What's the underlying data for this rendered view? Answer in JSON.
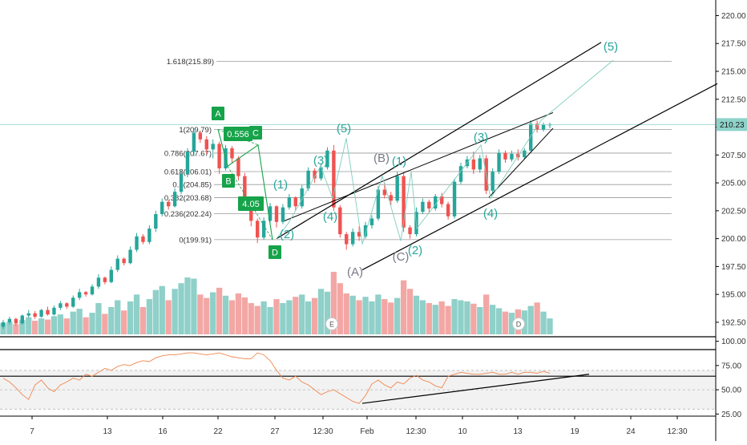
{
  "chart_data": [
    {
      "type": "candlestick",
      "price_axis": {
        "ticks": [
          "220.00",
          "217.50",
          "215.00",
          "212.50",
          "210.00",
          "207.50",
          "205.00",
          "202.50",
          "200.00",
          "197.50",
          "195.00",
          "192.50"
        ],
        "ylim": [
          191.2,
          221.4
        ],
        "last_price_label": "210.23",
        "last_price": 210.23
      },
      "time_axis": {
        "ticks": [
          "7",
          "13",
          "16",
          "22",
          "27",
          "12:30",
          "Feb",
          "12:30",
          "10",
          "13",
          "19",
          "24",
          "12:30"
        ]
      },
      "fib_levels": [
        {
          "label": "1.618(215.89)",
          "value": 215.89
        },
        {
          "label": "1(209.79)",
          "value": 209.79
        },
        {
          "label": "0.786(207.67)",
          "value": 207.67
        },
        {
          "label": "0.618(206.01)",
          "value": 206.01
        },
        {
          "label": "0.5(204.85)",
          "value": 204.85
        },
        {
          "label": "0.382(203.68)",
          "value": 203.68
        },
        {
          "label": "0.236(202.24)",
          "value": 202.24
        },
        {
          "label": "0(199.91)",
          "value": 199.91
        }
      ],
      "candles": [
        [
          192.1,
          192.7,
          191.9,
          192.5
        ],
        [
          192.5,
          193.0,
          192.3,
          192.8
        ],
        [
          192.8,
          192.9,
          192.2,
          192.4
        ],
        [
          192.4,
          193.2,
          192.3,
          193.1
        ],
        [
          193.1,
          193.6,
          192.9,
          193.3
        ],
        [
          193.3,
          193.5,
          192.8,
          193.0
        ],
        [
          193.0,
          193.7,
          192.9,
          193.6
        ],
        [
          193.6,
          193.9,
          193.1,
          193.2
        ],
        [
          193.2,
          194.0,
          193.1,
          193.8
        ],
        [
          193.8,
          194.4,
          193.6,
          194.2
        ],
        [
          194.2,
          194.3,
          193.7,
          193.9
        ],
        [
          193.9,
          194.9,
          193.8,
          194.7
        ],
        [
          194.7,
          195.5,
          194.5,
          195.2
        ],
        [
          195.2,
          195.3,
          194.8,
          195.0
        ],
        [
          195.0,
          195.9,
          194.9,
          195.7
        ],
        [
          195.7,
          196.8,
          195.5,
          196.5
        ],
        [
          196.5,
          196.6,
          195.9,
          196.1
        ],
        [
          196.1,
          197.5,
          196.0,
          197.2
        ],
        [
          197.2,
          198.5,
          197.0,
          198.2
        ],
        [
          198.2,
          198.3,
          197.6,
          197.8
        ],
        [
          197.8,
          199.3,
          197.7,
          199.0
        ],
        [
          199.0,
          200.5,
          198.8,
          200.2
        ],
        [
          200.2,
          200.4,
          199.5,
          199.7
        ],
        [
          199.7,
          201.2,
          199.5,
          200.9
        ],
        [
          200.9,
          202.5,
          200.6,
          202.2
        ],
        [
          202.2,
          203.6,
          202.0,
          203.3
        ],
        [
          203.3,
          203.5,
          202.6,
          202.9
        ],
        [
          202.9,
          204.5,
          202.8,
          204.2
        ],
        [
          204.2,
          206.1,
          204.0,
          205.8
        ],
        [
          205.8,
          208.1,
          205.5,
          207.8
        ],
        [
          207.8,
          209.9,
          207.4,
          209.5
        ],
        [
          209.5,
          209.7,
          208.6,
          208.9
        ],
        [
          208.9,
          209.2,
          207.6,
          208.0
        ],
        [
          208.0,
          208.9,
          207.2,
          208.5
        ],
        [
          208.5,
          208.7,
          205.8,
          206.3
        ],
        [
          206.3,
          208.4,
          206.1,
          208.1
        ],
        [
          208.1,
          208.3,
          206.8,
          207.2
        ],
        [
          207.2,
          207.4,
          205.2,
          205.6
        ],
        [
          205.6,
          205.9,
          203.0,
          203.4
        ],
        [
          203.4,
          203.6,
          201.1,
          201.6
        ],
        [
          201.6,
          201.8,
          199.6,
          200.1
        ],
        [
          200.1,
          201.9,
          199.9,
          201.6
        ],
        [
          201.6,
          203.2,
          201.4,
          202.9
        ],
        [
          202.9,
          203.0,
          201.0,
          201.5
        ],
        [
          201.5,
          203.1,
          201.3,
          202.8
        ],
        [
          202.8,
          204.0,
          202.6,
          203.7
        ],
        [
          203.7,
          203.8,
          202.5,
          202.9
        ],
        [
          202.9,
          204.8,
          202.7,
          204.5
        ],
        [
          204.5,
          206.4,
          204.3,
          206.1
        ],
        [
          206.1,
          206.3,
          205.0,
          205.4
        ],
        [
          205.4,
          206.7,
          205.2,
          206.4
        ],
        [
          206.4,
          208.2,
          206.2,
          207.9
        ],
        [
          207.9,
          208.4,
          202.5,
          202.8
        ],
        [
          202.8,
          203.0,
          200.1,
          200.4
        ],
        [
          200.4,
          200.6,
          199.0,
          199.5
        ],
        [
          199.5,
          200.9,
          199.3,
          200.6
        ],
        [
          200.6,
          201.1,
          199.8,
          200.2
        ],
        [
          200.2,
          201.5,
          200.0,
          201.2
        ],
        [
          201.2,
          202.1,
          200.9,
          201.8
        ],
        [
          201.8,
          204.7,
          201.6,
          204.4
        ],
        [
          204.4,
          205.0,
          203.6,
          203.9
        ],
        [
          203.9,
          204.2,
          203.0,
          203.4
        ],
        [
          203.4,
          206.0,
          203.2,
          205.6
        ],
        [
          205.6,
          205.9,
          200.6,
          201.0
        ],
        [
          201.0,
          201.2,
          200.0,
          200.4
        ],
        [
          200.4,
          202.8,
          200.2,
          202.4
        ],
        [
          202.4,
          203.6,
          202.2,
          203.3
        ],
        [
          203.3,
          203.5,
          202.3,
          202.7
        ],
        [
          202.7,
          204.0,
          202.5,
          203.8
        ],
        [
          203.8,
          204.1,
          202.8,
          203.1
        ],
        [
          203.1,
          203.3,
          201.7,
          202.0
        ],
        [
          202.0,
          205.4,
          201.8,
          205.1
        ],
        [
          205.1,
          206.8,
          204.9,
          206.5
        ],
        [
          206.5,
          207.4,
          206.3,
          207.1
        ],
        [
          207.1,
          207.8,
          205.8,
          206.2
        ],
        [
          206.2,
          207.5,
          205.9,
          207.2
        ],
        [
          207.2,
          207.5,
          204.0,
          204.3
        ],
        [
          204.3,
          206.3,
          204.1,
          206.0
        ],
        [
          206.0,
          208.0,
          205.8,
          207.7
        ],
        [
          207.7,
          207.9,
          206.8,
          207.1
        ],
        [
          207.1,
          207.9,
          206.9,
          207.6
        ],
        [
          207.6,
          208.0,
          207.0,
          207.3
        ],
        [
          207.3,
          208.1,
          207.1,
          207.9
        ],
        [
          207.9,
          210.6,
          207.7,
          210.3
        ],
        [
          210.3,
          210.6,
          209.5,
          209.8
        ],
        [
          209.8,
          210.4,
          209.6,
          210.2
        ],
        [
          210.2,
          210.4,
          209.9,
          210.23
        ]
      ],
      "wave_labels": [
        {
          "text": "(5)",
          "color": "#26a69a"
        },
        {
          "text": "(3)",
          "color": "#26a69a"
        },
        {
          "text": "(B)",
          "color": "#787b86"
        },
        {
          "text": "(1)",
          "color": "#26a69a"
        },
        {
          "text": "(3)",
          "color": "#26a69a"
        },
        {
          "text": "(1)",
          "color": "#26a69a"
        },
        {
          "text": "(4)",
          "color": "#26a69a"
        },
        {
          "text": "(2)",
          "color": "#26a69a"
        },
        {
          "text": "(A)",
          "color": "#787b86"
        },
        {
          "text": "(C)",
          "color": "#787b86"
        },
        {
          "text": "(2)",
          "color": "#26a69a"
        },
        {
          "text": "(4)",
          "color": "#26a69a"
        },
        {
          "text": "(5)",
          "color": "#26a69a"
        }
      ],
      "pattern_points": [
        "A",
        "B",
        "C",
        "D"
      ],
      "pattern_ratios": [
        "0.556",
        "4.05"
      ],
      "event_markers": [
        "E",
        "D"
      ],
      "volume": [
        20,
        22,
        18,
        25,
        30,
        24,
        28,
        26,
        32,
        35,
        28,
        40,
        45,
        30,
        38,
        55,
        36,
        48,
        60,
        42,
        58,
        70,
        48,
        62,
        78,
        85,
        60,
        80,
        90,
        100,
        98,
        70,
        64,
        74,
        82,
        68,
        60,
        72,
        65,
        55,
        50,
        58,
        48,
        62,
        55,
        60,
        66,
        70,
        58,
        64,
        80,
        75,
        110,
        90,
        72,
        68,
        60,
        66,
        58,
        70,
        62,
        56,
        64,
        95,
        80,
        68,
        60,
        55,
        52,
        58,
        50,
        62,
        60,
        58,
        54,
        48,
        70,
        52,
        46,
        40,
        38,
        44,
        42,
        50,
        56,
        40,
        28
      ],
      "rsi": {
        "ticks": [
          "100.00",
          "75.00",
          "50.00",
          "25.00"
        ],
        "ylim": [
          22,
          103
        ],
        "values": [
          62,
          58,
          52,
          45,
          40,
          55,
          60,
          52,
          48,
          55,
          58,
          62,
          60,
          66,
          64,
          68,
          72,
          70,
          74,
          76,
          75,
          78,
          80,
          79,
          83,
          85,
          86,
          86,
          87,
          88,
          88,
          87,
          86,
          87,
          88,
          86,
          84,
          83,
          82,
          82,
          88,
          86,
          80,
          70,
          62,
          60,
          64,
          58,
          55,
          50,
          45,
          48,
          50,
          46,
          42,
          38,
          36,
          44,
          56,
          60,
          55,
          52,
          58,
          56,
          62,
          65,
          60,
          58,
          54,
          52,
          64,
          66,
          68,
          67,
          66,
          66,
          67,
          68,
          66,
          66,
          68,
          66,
          68,
          68,
          67,
          69,
          67
        ],
        "trendline": "up"
      },
      "colors": {
        "up": "#26a69a",
        "down": "#ef5350",
        "vol_up": "#8fd0c9",
        "vol_down": "#f3a7a5",
        "fib": "#9a9a9a",
        "pattern": "#16a34a",
        "price_line": "#8ed3ca",
        "rsi_line": "#f0864b"
      }
    }
  ]
}
